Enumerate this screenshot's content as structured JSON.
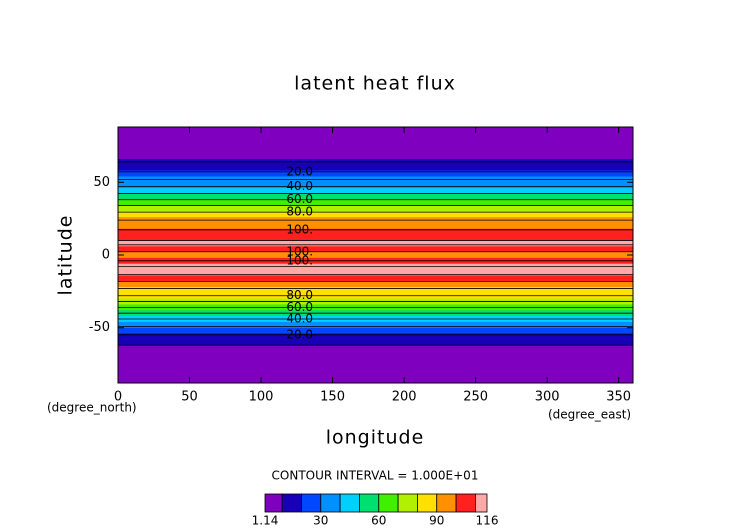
{
  "chart_data": {
    "type": "contour",
    "title": "latent heat flux",
    "x_label": "longitude",
    "y_label": "latitude",
    "y_unit": "(degree_north)",
    "x_unit": "(degree_east)",
    "contour_interval_text": "CONTOUR INTERVAL = 1.000E+01",
    "xlim": [
      0,
      360
    ],
    "ylim": [
      -88,
      88
    ],
    "xticks": [
      0,
      50,
      100,
      150,
      200,
      250,
      300,
      350
    ],
    "yticks": [
      -50,
      0,
      50
    ],
    "latitudes": [
      88,
      84,
      80,
      76,
      72,
      68,
      64,
      60,
      56,
      52,
      48,
      44,
      40,
      36,
      32,
      28,
      24,
      20,
      16,
      12,
      8,
      4,
      0,
      -4,
      -8,
      -12,
      -16,
      -20,
      -24,
      -28,
      -32,
      -36,
      -40,
      -44,
      -48,
      -52,
      -56,
      -60,
      -64,
      -68,
      -72,
      -76,
      -80,
      -84,
      -88
    ],
    "values": [
      2,
      3,
      4,
      5,
      6,
      8,
      10,
      15,
      22,
      30,
      38,
      46,
      55,
      65,
      75,
      83,
      90,
      96,
      102,
      108,
      112,
      104,
      95,
      100,
      110,
      113,
      105,
      96,
      88,
      80,
      70,
      60,
      50,
      40,
      32,
      25,
      18,
      12,
      8,
      5,
      4,
      3,
      2,
      2,
      1.5
    ],
    "levels": [
      1.14,
      10,
      20,
      30,
      40,
      50,
      60,
      70,
      80,
      90,
      100,
      110,
      116
    ],
    "colors": [
      "#8000c0",
      "#1800b8",
      "#0048ff",
      "#0090ff",
      "#00d0ff",
      "#00e070",
      "#40f000",
      "#b0f000",
      "#ffe000",
      "#ff9000",
      "#ff2020",
      "#ffa8a8"
    ],
    "colorbar_ticks": [
      1.14,
      30,
      60,
      90,
      116
    ],
    "contour_labels": [
      {
        "value": 20,
        "label": "20.0"
      },
      {
        "value": 40,
        "label": "40.0"
      },
      {
        "value": 60,
        "label": "60.0"
      },
      {
        "value": 80,
        "label": "80.0"
      },
      {
        "value": 100,
        "label": "100."
      },
      {
        "value": 100,
        "label": "100."
      },
      {
        "value": 100,
        "label": "100."
      },
      {
        "value": 80,
        "label": "80.0"
      },
      {
        "value": 60,
        "label": "60.0"
      },
      {
        "value": 40,
        "label": "40.0"
      },
      {
        "value": 20,
        "label": "20.0"
      }
    ]
  }
}
